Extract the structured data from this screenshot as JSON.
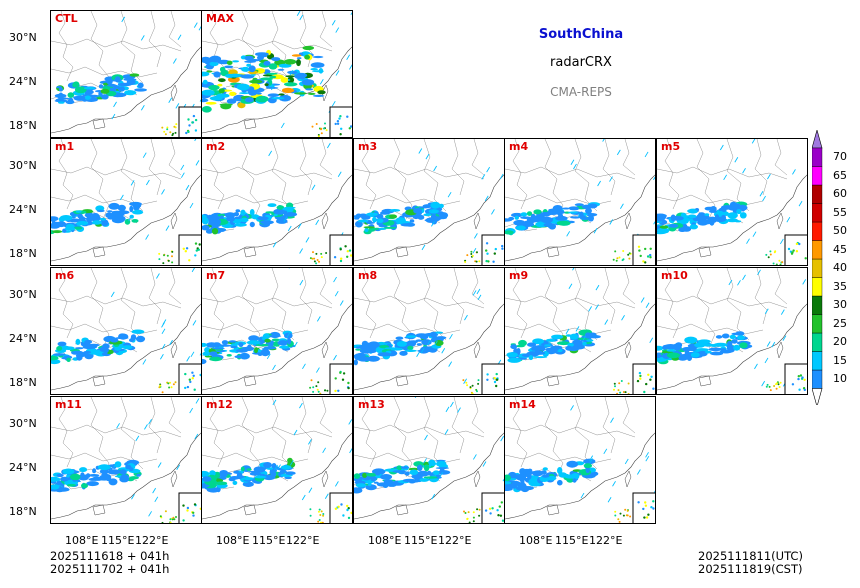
{
  "title": "SouthChina",
  "variable": "radarCRX",
  "model": "CMA-REPS",
  "panels": [
    "CTL",
    "MAX",
    "m1",
    "m2",
    "m3",
    "m4",
    "m5",
    "m6",
    "m7",
    "m8",
    "m9",
    "m10",
    "m11",
    "m12",
    "m13",
    "m14"
  ],
  "lat_ticks": [
    "30°N",
    "24°N",
    "18°N"
  ],
  "lon_ticks": [
    "108°E",
    "115°E",
    "122°E"
  ],
  "init_time": {
    "line1": "2025111618  +  041h",
    "line2": "2025111702  +  041h"
  },
  "valid_time": {
    "utc": "2025111811(UTC)",
    "cst": "2025111819(CST)"
  },
  "chart_data": {
    "type": "heatmap",
    "title": "SouthChina",
    "subtitle": "radarCRX",
    "colorbar": {
      "levels": [
        10,
        15,
        20,
        25,
        30,
        35,
        40,
        45,
        50,
        55,
        60,
        65,
        70
      ],
      "labels": [
        "10",
        "15",
        "20",
        "25",
        "30",
        "35",
        "40",
        "45",
        "50",
        "55",
        "60",
        "65",
        "70"
      ],
      "colors": [
        "#1e90ff",
        "#00c8ff",
        "#00d68f",
        "#22c22c",
        "#0a7a0a",
        "#ffff00",
        "#e6c000",
        "#ff9900",
        "#ff1a00",
        "#d00000",
        "#b00000",
        "#ff00ff",
        "#9a00c8",
        "#a078e0"
      ]
    },
    "xlim": [
      104,
      126
    ],
    "ylim": [
      16,
      33
    ]
  }
}
